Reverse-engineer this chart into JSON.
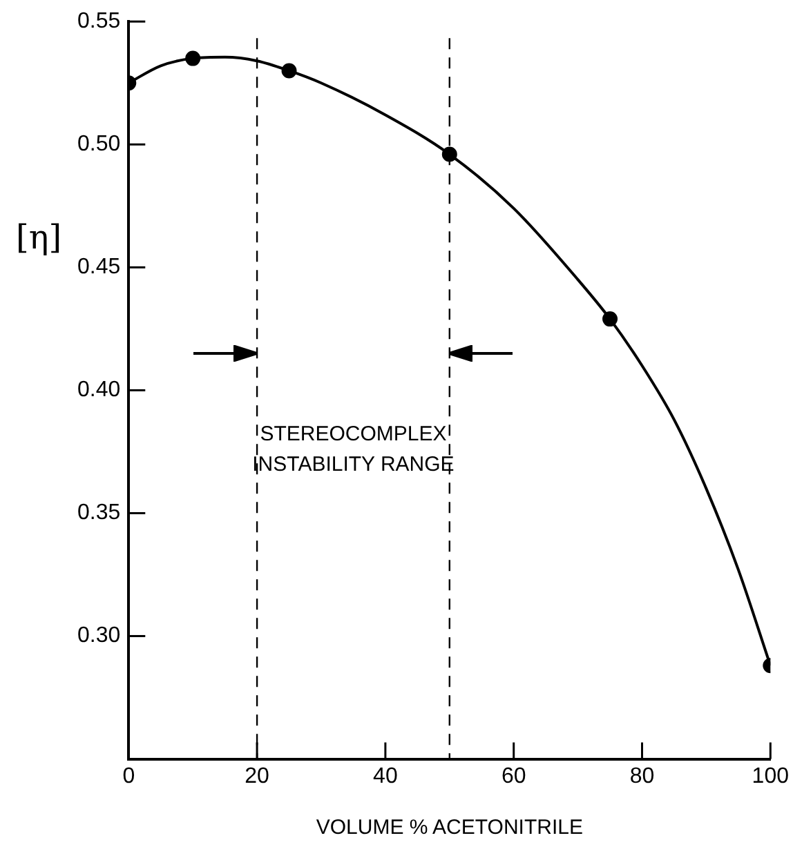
{
  "chart_data": {
    "type": "scatter",
    "xlabel": "VOLUME % ACETONITRILE",
    "ylabel": "[η]",
    "xlim": [
      0,
      100
    ],
    "xticks": [
      0,
      20,
      40,
      60,
      80,
      100
    ],
    "ylim": [
      0.25,
      0.55
    ],
    "yticks": [
      {
        "value": 0.3,
        "label": "0.30"
      },
      0.35,
      {
        "value": 0.4,
        "label": "0.40"
      },
      0.45,
      {
        "value": 0.5,
        "label": "0.50"
      },
      0.55
    ],
    "grid": false,
    "legend": false,
    "marker": "circle",
    "series": [
      {
        "color": "#000000",
        "x": [
          0,
          10,
          25,
          50,
          75,
          100
        ],
        "values": [
          0.525,
          0.535,
          0.53,
          0.496,
          0.429,
          0.288
        ]
      },
      {
        "type": "line",
        "color": "#000000",
        "marker": "none",
        "line_style": "solid",
        "x": [
          0,
          5,
          10,
          15,
          20,
          25,
          30,
          40,
          50,
          60,
          70,
          75,
          80,
          85,
          90,
          95,
          100
        ],
        "values": [
          0.525,
          0.532,
          0.535,
          0.5355,
          0.534,
          0.53,
          0.525,
          0.512,
          0.496,
          0.474,
          0.445,
          0.429,
          0.41,
          0.388,
          0.36,
          0.327,
          0.288
        ]
      }
    ],
    "ref_lines": [
      {
        "axis": "x",
        "value": 20,
        "line_style": "dashed",
        "color": "#000000"
      },
      {
        "axis": "x",
        "value": 50,
        "line_style": "dashed",
        "color": "#000000"
      }
    ],
    "annotations": [
      "STEREOCOMPLEX\nINSTABILITY RANGE"
    ]
  }
}
